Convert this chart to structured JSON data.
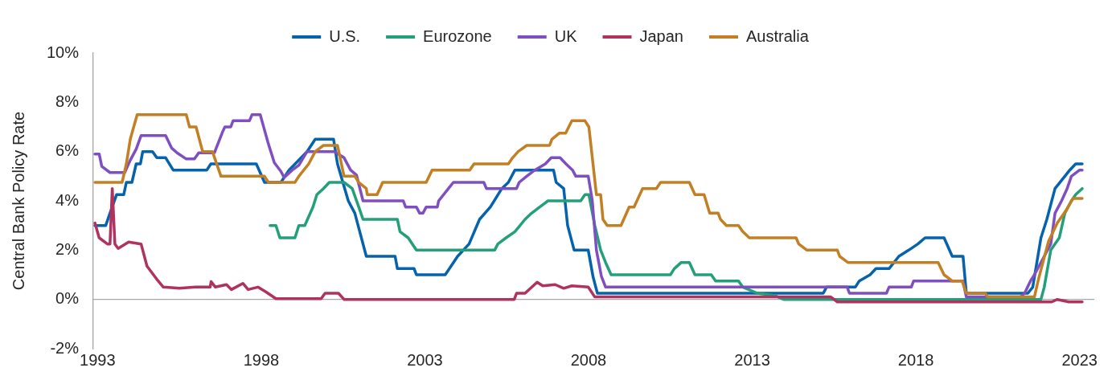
{
  "chart_data": {
    "type": "line",
    "ylabel": "Central Bank Policy Rate",
    "xlim": [
      1992.87,
      2023.45
    ],
    "xticks": [
      1993,
      1998,
      2003,
      2008,
      2013,
      2018,
      2023
    ],
    "ylim": [
      -2,
      10
    ],
    "yticks": [
      {
        "value": -2,
        "label": "-2%"
      },
      {
        "value": 0,
        "label": "0%"
      },
      {
        "value": 2,
        "label": "2%"
      },
      {
        "value": 4,
        "label": "4%"
      },
      {
        "value": 6,
        "label": "6%"
      },
      {
        "value": 8,
        "label": "8%"
      },
      {
        "value": 10,
        "label": "10%"
      }
    ],
    "grid": false,
    "legend": "top",
    "marker": "none",
    "line_style": "solid",
    "ref_lines": [
      {
        "axis": "y",
        "value": 0,
        "color": "#a6a6a6"
      }
    ],
    "series": [
      {
        "name": "U.S.",
        "color": "#0563ad",
        "x": [
          1992.92,
          1993.25,
          1993.38,
          1993.58,
          1993.8,
          1993.88,
          1994.05,
          1994.18,
          1994.31,
          1994.38,
          1994.68,
          1994.81,
          1995.08,
          1995.31,
          1996.34,
          1996.46,
          1997.85,
          1998.1,
          1998.6,
          1998.85,
          1999.4,
          1999.65,
          2000.21,
          2000.33,
          2000.66,
          2000.86,
          2001.21,
          2002.09,
          2002.16,
          2002.67,
          2002.74,
          2003.62,
          2003.75,
          2004,
          2004.35,
          2004.67,
          2005,
          2005.35,
          2005.55,
          2005.75,
          2006.93,
          2007.01,
          2007.24,
          2007.36,
          2007.56,
          2007.99,
          2008.14,
          2008.27,
          2015.17,
          2015.27,
          2016.15,
          2016.27,
          2016.6,
          2016.78,
          2017.18,
          2017.48,
          2017.78,
          2018.06,
          2018.28,
          2018.86,
          2019.11,
          2019.44,
          2019.54,
          2021.42,
          2021.57,
          2021.82,
          2022,
          2022.25,
          2022.55,
          2022.7,
          2022.88,
          2023.08
        ],
        "values": [
          3,
          3,
          3.5,
          4.25,
          4.25,
          4.75,
          4.75,
          5.5,
          5.5,
          6,
          6,
          5.75,
          5.75,
          5.25,
          5.25,
          5.5,
          5.5,
          4.75,
          4.75,
          5.25,
          6,
          6.5,
          6.5,
          5.5,
          4,
          3.5,
          1.75,
          1.75,
          1.25,
          1.25,
          1,
          1,
          1.25,
          1.75,
          2.25,
          3.25,
          3.75,
          4.5,
          4.75,
          5.25,
          5.25,
          4.75,
          4.5,
          3,
          2,
          2,
          0.9,
          0.25,
          0.25,
          0.5,
          0.5,
          0.75,
          1,
          1.25,
          1.25,
          1.75,
          2,
          2.25,
          2.5,
          2.5,
          1.75,
          1.75,
          0.25,
          0.25,
          0.5,
          2.5,
          3.25,
          4.5,
          5,
          5.25,
          5.5,
          5.5
        ]
      },
      {
        "name": "Eurozone",
        "color": "#23a07a",
        "x": [
          1998.27,
          1998.45,
          1998.57,
          1999.03,
          1999.15,
          1999.33,
          1999.58,
          1999.7,
          1999.9,
          2000.08,
          2000.53,
          2000.78,
          2000.98,
          2001.11,
          2002.16,
          2002.24,
          2002.49,
          2002.74,
          2005.13,
          2005.23,
          2005.48,
          2005.75,
          2006.06,
          2006.26,
          2006.51,
          2006.76,
          2007.76,
          2007.89,
          2008.01,
          2008.19,
          2008.37,
          2008.52,
          2008.69,
          2010.5,
          2010.62,
          2010.83,
          2011.08,
          2011.25,
          2011.75,
          2011.88,
          2012.58,
          2012.71,
          2013.16,
          2013.7,
          2013.96,
          2021.82,
          2021.92,
          2022.12,
          2022.38,
          2022.55,
          2022.75,
          2022.88,
          2023.08
        ],
        "values": [
          3,
          3,
          2.5,
          2.5,
          3,
          3,
          3.75,
          4.25,
          4.5,
          4.75,
          4.75,
          4.5,
          3.75,
          3.25,
          3.25,
          2.75,
          2.5,
          2,
          2,
          2.25,
          2.5,
          2.75,
          3.25,
          3.5,
          3.75,
          4,
          4,
          4.25,
          4.25,
          3,
          2,
          1.5,
          1,
          1,
          1.25,
          1.5,
          1.5,
          1,
          1,
          0.75,
          0.75,
          0.5,
          0.25,
          0.15,
          0,
          0,
          0.5,
          2,
          2.5,
          3.5,
          4,
          4.25,
          4.5
        ]
      },
      {
        "name": "UK",
        "color": "#7f4fc2",
        "x": [
          1992.92,
          1993.05,
          1993.13,
          1993.38,
          1993.83,
          1994,
          1994.18,
          1994.33,
          1995.08,
          1995.26,
          1995.43,
          1995.71,
          1995.96,
          1996.09,
          1996.57,
          1996.82,
          1996.89,
          1997.07,
          1997.14,
          1997.64,
          1997.72,
          1997.97,
          1998.2,
          1998.4,
          1998.6,
          1998.7,
          1998.95,
          1999.15,
          1999.4,
          2000.23,
          2000.53,
          2000.73,
          2000.91,
          2001.11,
          2002.34,
          2002.41,
          2002.74,
          2002.84,
          2002.94,
          2003.04,
          2003.38,
          2003.42,
          2003.72,
          2003.87,
          2004.8,
          2004.88,
          2005.8,
          2005.88,
          2006.11,
          2006.36,
          2006.68,
          2006.86,
          2007.13,
          2007.31,
          2007.51,
          2007.61,
          2007.99,
          2008.11,
          2008.24,
          2008.39,
          2008.52,
          2015.9,
          2015.97,
          2017.1,
          2017.18,
          2017.86,
          2017.93,
          2019.44,
          2019.54,
          2021.2,
          2021.32,
          2021.5,
          2021.62,
          2021.92,
          2022.12,
          2022.25,
          2022.45,
          2022.62,
          2022.75,
          2023,
          2023.08
        ],
        "values": [
          5.9,
          5.9,
          5.4,
          5.15,
          5.15,
          5.65,
          6.1,
          6.65,
          6.65,
          6.15,
          5.95,
          5.7,
          5.7,
          5.95,
          5.95,
          6.8,
          7,
          7,
          7.25,
          7.25,
          7.5,
          7.5,
          6.4,
          5.55,
          5.2,
          4.95,
          5.25,
          5.45,
          6,
          6,
          5.75,
          5.25,
          5.05,
          4,
          4,
          3.75,
          3.75,
          3.5,
          3.5,
          3.75,
          3.75,
          4,
          4.5,
          4.75,
          4.75,
          4.5,
          4.5,
          4.75,
          5,
          5.25,
          5.5,
          5.75,
          5.75,
          5.5,
          5.25,
          5,
          5,
          4.05,
          2,
          0.95,
          0.5,
          0.5,
          0.25,
          0.25,
          0.5,
          0.5,
          0.75,
          0.75,
          0.1,
          0.1,
          0.25,
          0.75,
          1,
          1.75,
          2.25,
          3.5,
          4,
          4.5,
          5,
          5.25,
          5.25
        ]
      },
      {
        "name": "Japan",
        "color": "#b0325f",
        "x": [
          1992.92,
          1993.05,
          1993.3,
          1993.38,
          1993.45,
          1993.53,
          1993.63,
          1993.95,
          1994.33,
          1994.51,
          1994.81,
          1995.01,
          1995.5,
          1996,
          1996.44,
          1996.47,
          1996.6,
          1996.94,
          1997.09,
          1997.44,
          1997.6,
          1997.9,
          1998.15,
          1998.45,
          1999.83,
          1999.95,
          2000.36,
          2000.53,
          2005.73,
          2005.8,
          2006.06,
          2006.43,
          2006.6,
          2006.98,
          2007.24,
          2007.49,
          2007.99,
          2008.19,
          2015.4,
          2015.6,
          2022.15,
          2022.32,
          2022.67,
          2023.08
        ],
        "values": [
          3.1,
          2.5,
          2.25,
          2.25,
          4.5,
          2.25,
          2.07,
          2.33,
          2.25,
          1.35,
          0.82,
          0.5,
          0.45,
          0.5,
          0.5,
          0.72,
          0.5,
          0.6,
          0.4,
          0.65,
          0.4,
          0.5,
          0.3,
          0.03,
          0.03,
          0.25,
          0.25,
          0,
          0,
          0.25,
          0.25,
          0.7,
          0.55,
          0.6,
          0.45,
          0.55,
          0.5,
          0.1,
          0.1,
          -0.1,
          -0.1,
          0,
          -0.1,
          -0.1
        ]
      },
      {
        "name": "Australia",
        "color": "#c37f23",
        "x": [
          1992.92,
          1993.75,
          1993.88,
          1994,
          1994.21,
          1995.71,
          1995.81,
          1996.01,
          1996.21,
          1996.51,
          1996.77,
          1998.1,
          1998.22,
          1999.03,
          1999.15,
          1999.45,
          1999.65,
          1999.9,
          2000.33,
          2000.53,
          2000.86,
          2000.98,
          2001.21,
          2001.24,
          2001.54,
          2001.71,
          2003.04,
          2003.22,
          2004.37,
          2004.5,
          2005.55,
          2005.68,
          2005.85,
          2006.11,
          2006.81,
          2006.88,
          2007.11,
          2007.3,
          2007.49,
          2007.89,
          2008.01,
          2008.24,
          2008.37,
          2008.44,
          2008.57,
          2008.99,
          2009.24,
          2009.39,
          2009.65,
          2010.07,
          2010.2,
          2011.08,
          2011.25,
          2011.53,
          2011.7,
          2011.96,
          2012.03,
          2012.21,
          2012.58,
          2012.71,
          2012.91,
          2014.34,
          2014.42,
          2014.67,
          2015.6,
          2015.67,
          2015.92,
          2018.68,
          2018.86,
          2019.11,
          2019.41,
          2019.54,
          2020.12,
          2020.19,
          2021.62,
          2021.75,
          2022.05,
          2022.32,
          2022.58,
          2022.8,
          2023.08
        ],
        "values": [
          4.75,
          4.75,
          5.5,
          6.5,
          7.5,
          7.5,
          7,
          7,
          6,
          6,
          5,
          5,
          4.75,
          4.75,
          5,
          5.5,
          6,
          6.25,
          6.25,
          5,
          5,
          4.75,
          4.5,
          4.25,
          4.25,
          4.75,
          4.75,
          5.25,
          5.25,
          5.5,
          5.5,
          5.75,
          6,
          6.25,
          6.25,
          6.5,
          6.75,
          6.75,
          7.25,
          7.25,
          7,
          4.25,
          4.25,
          3.25,
          3,
          3,
          3.75,
          3.75,
          4.5,
          4.5,
          4.75,
          4.75,
          4.25,
          4.25,
          3.5,
          3.5,
          3.25,
          3,
          3,
          2.75,
          2.5,
          2.5,
          2.25,
          2,
          2,
          1.75,
          1.5,
          1.5,
          1,
          0.75,
          0.75,
          0.25,
          0.25,
          0.1,
          0.1,
          0.85,
          2.35,
          3.1,
          3.6,
          4.1,
          4.1
        ]
      }
    ]
  }
}
